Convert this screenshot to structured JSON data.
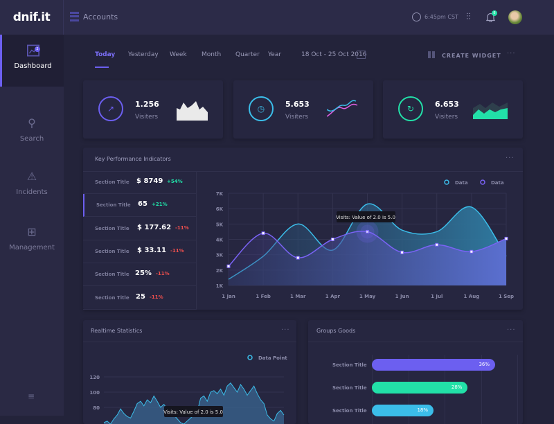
{
  "header": {
    "logo": "dnif.it",
    "section": "Accounts",
    "time": "6:45pm CST",
    "notification_count": "8"
  },
  "sidebar": {
    "items": [
      {
        "label": "Dashboard",
        "icon": "chart-icon",
        "badge": "2",
        "active": true
      },
      {
        "label": "Search",
        "icon": "search-icon"
      },
      {
        "label": "Incidents",
        "icon": "warning-icon"
      },
      {
        "label": "Management",
        "icon": "grid-icon"
      }
    ],
    "menu_icon": "hamburger-icon"
  },
  "toolbar": {
    "tabs": [
      "Today",
      "Yesterday",
      "Week",
      "Month",
      "Quarter",
      "Year"
    ],
    "active_tab": "Today",
    "date_range": "18 Oct - 25 Oct 2016",
    "create_widget": "CREATE WIDGET"
  },
  "stats": [
    {
      "value": "1.256",
      "label": "Visiters",
      "color": "#6c5ff0",
      "icon": "trend-icon"
    },
    {
      "value": "5.653",
      "label": "Visiters",
      "color": "#3bbde9",
      "icon": "clock-icon"
    },
    {
      "value": "6.653",
      "label": "Visiters",
      "color": "#22e0a8",
      "icon": "refresh-icon"
    }
  ],
  "kpi": {
    "title": "Key Performance Indicators",
    "rows": [
      {
        "title": "Section Title",
        "value": "$ 8749",
        "change": "+54%",
        "up": true
      },
      {
        "title": "Section Title",
        "value": "65",
        "change": "+21%",
        "up": true
      },
      {
        "title": "Section Title",
        "value": "$ 177.62",
        "change": "-11%",
        "up": false
      },
      {
        "title": "Section Title",
        "value": "$ 33.11",
        "change": "-11%",
        "up": false
      },
      {
        "title": "Section Title",
        "value": "25%",
        "change": "-11%",
        "up": false
      },
      {
        "title": "Section Title",
        "value": "25",
        "change": "-11%",
        "up": false
      }
    ]
  },
  "chart_data": [
    {
      "type": "area",
      "categories": [
        "1 Jan",
        "1 Feb",
        "1 Mar",
        "1 Apr",
        "1 May",
        "1 Jun",
        "1 Jul",
        "1 Aug",
        "1 Sep"
      ],
      "yticks": [
        "1K",
        "2K",
        "3K",
        "4K",
        "5K",
        "6K",
        "7K"
      ],
      "ylim": [
        1000,
        7000
      ],
      "grid": true,
      "legend": "top-right",
      "tooltip": "Visits: Value of 2.0 is 5.0",
      "series": [
        {
          "name": "Data",
          "color": "#3bbde9",
          "values": [
            1400,
            2900,
            5000,
            3300,
            6300,
            4600,
            4500,
            6100,
            2900
          ]
        },
        {
          "name": "Data",
          "color": "#7a63f5",
          "values": [
            2250,
            4400,
            2800,
            4000,
            4500,
            3150,
            3650,
            3200,
            4050
          ]
        }
      ]
    },
    {
      "type": "area",
      "title": "Realtime Statistics",
      "yticks": [
        "80",
        "100",
        "120"
      ],
      "legend": "top-right",
      "tooltip": "Visits: Value of 2.0 is 5.0",
      "series": [
        {
          "name": "Data Point",
          "color": "#3bbde9",
          "values": [
            60,
            62,
            58,
            65,
            70,
            78,
            72,
            68,
            66,
            75,
            85,
            88,
            82,
            90,
            86,
            95,
            88,
            80,
            84,
            78,
            76,
            70,
            65,
            60,
            58,
            62,
            66,
            70,
            74,
            92,
            95,
            88,
            100,
            102,
            98,
            104,
            96,
            108,
            112,
            106,
            100,
            110,
            104,
            96,
            102,
            108,
            98,
            90,
            85,
            70,
            65,
            62,
            72,
            76,
            70
          ]
        }
      ]
    },
    {
      "type": "bar",
      "title": "Groups Goods",
      "orientation": "horizontal",
      "categories": [
        "Section Title",
        "Section Title",
        "Section Title"
      ],
      "values": [
        36,
        28,
        18
      ],
      "value_labels": [
        "36%",
        "28%",
        "18%"
      ],
      "colors": [
        "#6c5ff0",
        "#22e0a8",
        "#3bbde9"
      ]
    }
  ]
}
